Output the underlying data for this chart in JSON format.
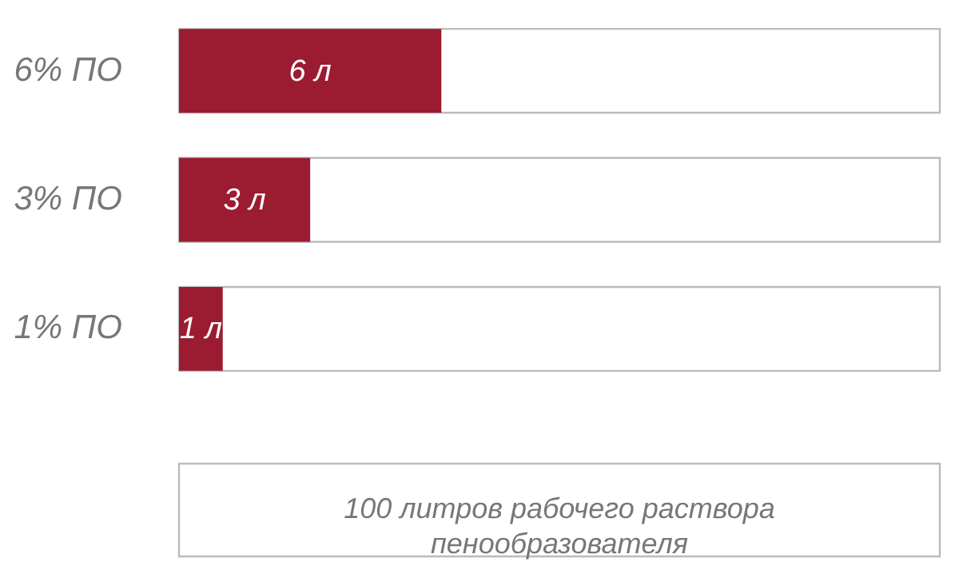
{
  "chart_data": {
    "type": "bar",
    "orientation": "horizontal",
    "categories": [
      "6% ПО",
      "3% ПО",
      "1% ПО"
    ],
    "values": [
      6,
      3,
      1
    ],
    "value_labels": [
      "6 л",
      "3 л",
      "1 л"
    ],
    "color": "#9b1b30",
    "xlim": [
      0,
      17.4
    ],
    "tick_labels": "y",
    "annotations": [
      "100  литров рабочего раствора пенообразователя"
    ]
  }
}
